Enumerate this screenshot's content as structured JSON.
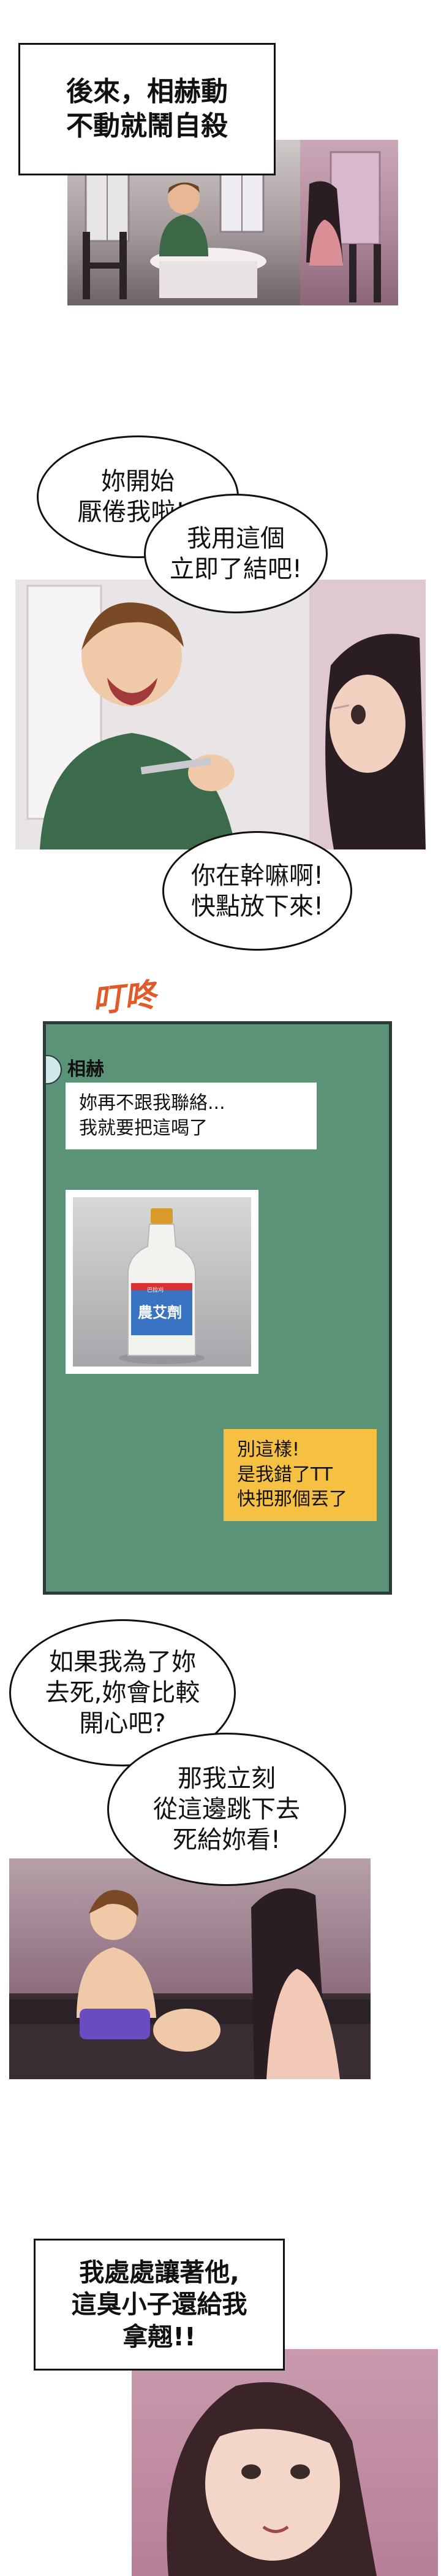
{
  "page": {
    "background": "#ffffff"
  },
  "panel1": {
    "caption_lines": [
      "後來，相赫動",
      "不動就鬧自殺"
    ]
  },
  "panel2": {
    "bubble_a_lines": [
      "妳開始",
      "厭倦我啦!?"
    ],
    "bubble_b_lines": [
      "我用這個",
      "立即了結吧!"
    ],
    "bubble_c_lines": [
      "你在幹嘛啊!",
      "快點放下來!"
    ]
  },
  "phone": {
    "sfx": "叮咚",
    "contact_name": "相赫",
    "message_lines": [
      "妳再不跟我聯絡...",
      "我就要把這喝了"
    ],
    "bottle_label": "巴拉刈",
    "bottle_main": "農艾劑",
    "reply_lines": [
      "別這樣!",
      "是我錯了TT",
      "快把那個丟了"
    ],
    "colors": {
      "bg": "#5b9378",
      "frame": "#2e3b36",
      "reply": "#f6c043"
    }
  },
  "panel3": {
    "bubble_a_lines": [
      "如果我為了妳",
      "去死,妳會比較",
      "開心吧?"
    ],
    "bubble_b_lines": [
      "那我立刻",
      "從這邊跳下去",
      "死給妳看!"
    ]
  },
  "panel4": {
    "caption_lines": [
      "我處處讓著他,",
      "這臭小子還給我",
      "拿翹!!"
    ]
  }
}
